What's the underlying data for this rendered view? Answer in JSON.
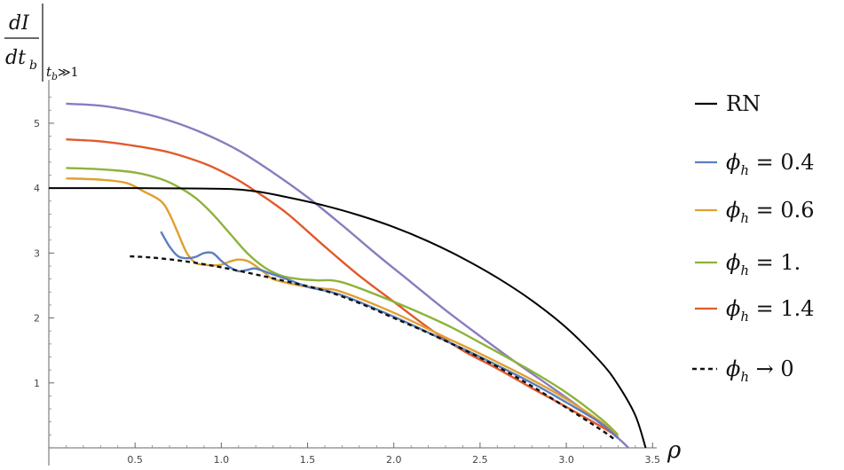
{
  "chart_data": {
    "type": "line",
    "xlabel": "ρ",
    "ylabel": {
      "numerator": "dI",
      "denominator": "dt",
      "denominator_sub": "b",
      "condition": "t",
      "condition_sub": "b",
      "condition_rest": "≫1"
    },
    "xlim": [
      0,
      3.55
    ],
    "ylim": [
      0,
      5.6
    ],
    "x_ticks": [
      "0.5",
      "1.0",
      "1.5",
      "2.0",
      "2.5",
      "3.0",
      "3.5"
    ],
    "x_tick_values": [
      0.5,
      1.0,
      1.5,
      2.0,
      2.5,
      3.0,
      3.5
    ],
    "y_ticks": [
      "1",
      "2",
      "3",
      "4",
      "5"
    ],
    "y_tick_values": [
      1,
      2,
      3,
      4,
      5
    ],
    "grid": false,
    "legend_position": "right",
    "series": [
      {
        "name": "RN",
        "color": "#000000",
        "dash": "solid",
        "x": [
          0.0,
          0.5,
          1.0,
          1.2,
          1.4,
          1.6,
          1.8,
          2.0,
          2.2,
          2.4,
          2.6,
          2.8,
          3.0,
          3.2,
          3.3,
          3.4,
          3.46
        ],
        "y": [
          4.0,
          4.0,
          3.99,
          3.95,
          3.85,
          3.73,
          3.58,
          3.4,
          3.18,
          2.92,
          2.62,
          2.27,
          1.85,
          1.32,
          0.97,
          0.5,
          0.0
        ]
      },
      {
        "name": "ϕh = 0.4",
        "color": "#5b7fc0",
        "dash": "solid",
        "x": [
          0.65,
          0.7,
          0.75,
          0.8,
          0.85,
          0.9,
          0.95,
          1.0,
          1.05,
          1.1,
          1.15,
          1.2,
          1.3,
          1.4,
          1.5,
          1.7,
          2.0,
          2.3,
          2.5,
          2.8,
          3.0,
          3.2,
          3.3
        ],
        "y": [
          3.33,
          3.1,
          2.95,
          2.92,
          2.94,
          3.0,
          3.0,
          2.88,
          2.78,
          2.72,
          2.74,
          2.76,
          2.67,
          2.58,
          2.48,
          2.35,
          2.02,
          1.65,
          1.4,
          1.0,
          0.7,
          0.38,
          0.15
        ]
      },
      {
        "name": "ϕh = 0.6",
        "color": "#e0a030",
        "dash": "solid",
        "x": [
          0.1,
          0.3,
          0.45,
          0.55,
          0.65,
          0.7,
          0.75,
          0.8,
          0.85,
          0.9,
          0.95,
          1.0,
          1.05,
          1.1,
          1.15,
          1.2,
          1.25,
          1.3,
          1.4,
          1.5,
          1.6,
          1.7,
          2.0,
          2.3,
          2.5,
          2.8,
          3.0,
          3.2,
          3.3
        ],
        "y": [
          4.15,
          4.13,
          4.08,
          3.95,
          3.8,
          3.6,
          3.3,
          3.0,
          2.85,
          2.82,
          2.81,
          2.82,
          2.87,
          2.9,
          2.88,
          2.8,
          2.7,
          2.6,
          2.53,
          2.48,
          2.45,
          2.4,
          2.08,
          1.7,
          1.45,
          1.05,
          0.75,
          0.4,
          0.17
        ]
      },
      {
        "name": "ϕh = 1.",
        "color": "#8db33a",
        "dash": "solid",
        "x": [
          0.1,
          0.3,
          0.5,
          0.65,
          0.75,
          0.85,
          0.95,
          1.05,
          1.15,
          1.25,
          1.35,
          1.45,
          1.55,
          1.7,
          2.0,
          2.3,
          2.5,
          2.8,
          3.0,
          3.2,
          3.3
        ],
        "y": [
          4.31,
          4.29,
          4.24,
          4.14,
          4.02,
          3.85,
          3.6,
          3.3,
          3.0,
          2.78,
          2.65,
          2.6,
          2.58,
          2.55,
          2.25,
          1.9,
          1.62,
          1.18,
          0.85,
          0.45,
          0.2
        ]
      },
      {
        "name": "ϕh = 1.4",
        "color": "#e05a2b",
        "dash": "solid",
        "x": [
          0.1,
          0.3,
          0.5,
          0.7,
          0.9,
          1.0,
          1.1,
          1.2,
          1.3,
          1.4,
          1.6,
          1.8,
          2.0,
          2.2,
          2.4,
          2.6,
          2.8,
          3.0,
          3.2,
          3.3
        ],
        "y": [
          4.75,
          4.72,
          4.65,
          4.55,
          4.38,
          4.26,
          4.12,
          3.95,
          3.77,
          3.57,
          3.1,
          2.65,
          2.25,
          1.85,
          1.5,
          1.22,
          0.92,
          0.63,
          0.33,
          0.17
        ]
      },
      {
        "name": "",
        "color": "#8a7cbe",
        "dash": "solid",
        "x": [
          0.1,
          0.3,
          0.5,
          0.7,
          0.9,
          1.1,
          1.3,
          1.5,
          1.7,
          1.9,
          2.1,
          2.3,
          2.5,
          2.7,
          2.9,
          3.1,
          3.3,
          3.36
        ],
        "y": [
          5.3,
          5.27,
          5.18,
          5.04,
          4.84,
          4.58,
          4.24,
          3.86,
          3.43,
          2.98,
          2.55,
          2.12,
          1.72,
          1.33,
          0.96,
          0.58,
          0.15,
          0.0
        ]
      },
      {
        "name": "ϕh → 0",
        "color": "#111111",
        "dash": "dashed",
        "x": [
          0.47,
          0.6,
          0.8,
          1.0,
          1.2,
          1.4,
          1.6,
          1.8,
          2.0,
          2.2,
          2.4,
          2.6,
          2.8,
          3.0,
          3.2,
          3.28
        ],
        "y": [
          2.95,
          2.93,
          2.87,
          2.78,
          2.67,
          2.55,
          2.42,
          2.23,
          2.0,
          1.77,
          1.52,
          1.25,
          0.95,
          0.62,
          0.28,
          0.13
        ]
      }
    ]
  },
  "legend": [
    {
      "series": 0,
      "base": "RN",
      "sub": "",
      "rest": ""
    },
    {
      "series": 1,
      "base": "ϕ",
      "sub": "h",
      "rest": " = 0.4"
    },
    {
      "series": 2,
      "base": "ϕ",
      "sub": "h",
      "rest": " = 0.6"
    },
    {
      "series": 3,
      "base": "ϕ",
      "sub": "h",
      "rest": " = 1."
    },
    {
      "series": 4,
      "base": "ϕ",
      "sub": "h",
      "rest": " = 1.4"
    },
    {
      "series": 6,
      "base": "ϕ",
      "sub": "h",
      "rest": " → 0"
    }
  ]
}
